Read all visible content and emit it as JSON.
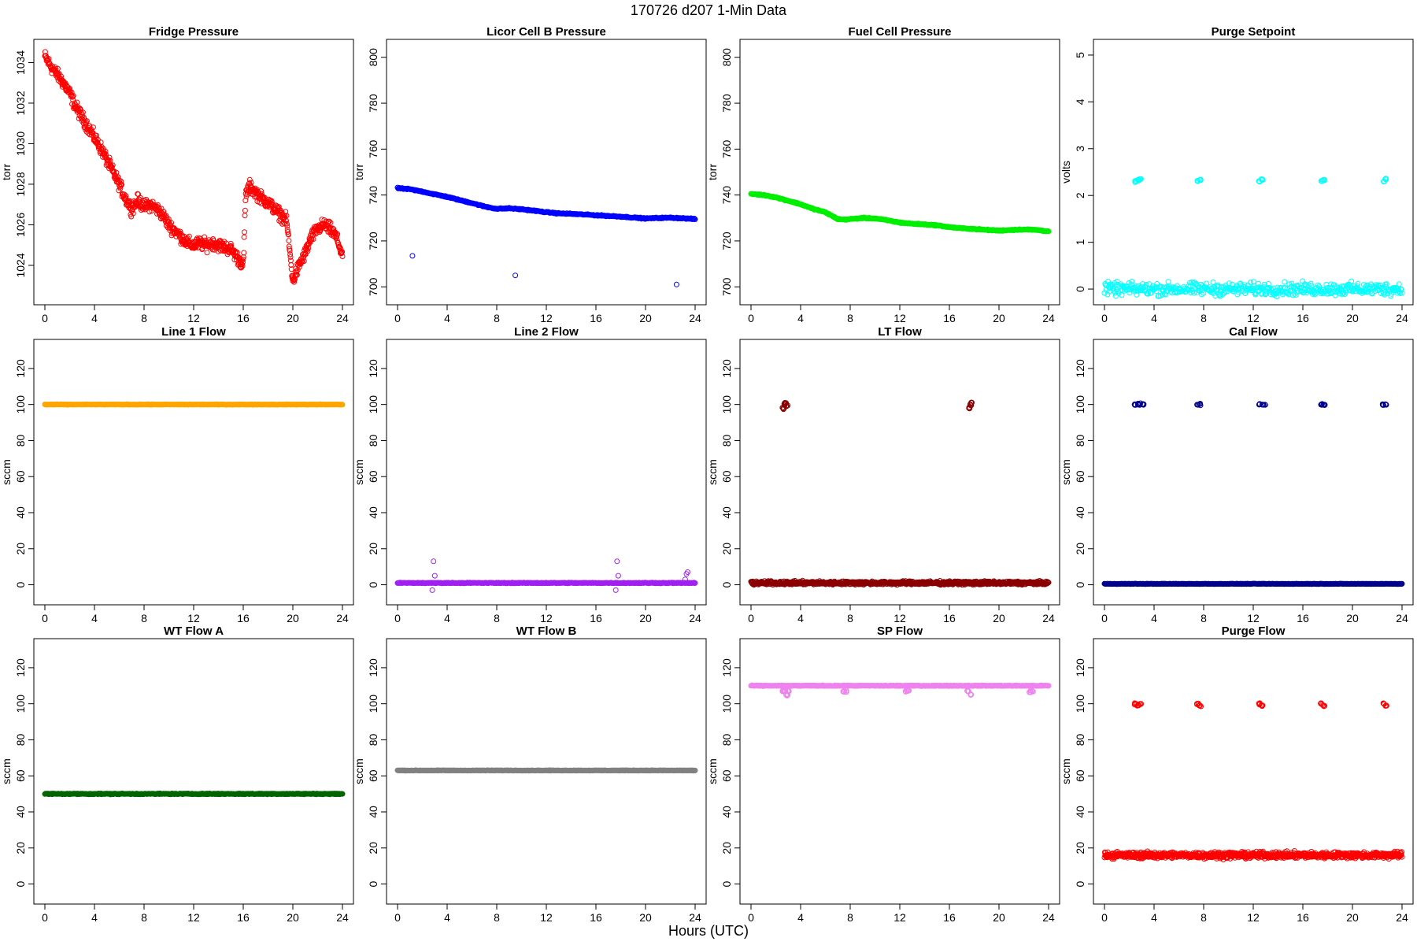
{
  "figure": {
    "title": "170726    d207    1-Min Data",
    "xlabel": "Hours (UTC)"
  },
  "chart_data": [
    {
      "type": "scatter",
      "title": "Fridge Pressure",
      "ylabel": "torr",
      "xlim": [
        0,
        24
      ],
      "ylim": [
        1022.6,
        1034.6
      ],
      "xticks": [
        0,
        4,
        8,
        12,
        16,
        20,
        24
      ],
      "yticks": [
        1024,
        1026,
        1028,
        1030,
        1032,
        1034
      ],
      "color": "#ff0000",
      "marker": "open-circle",
      "series": [
        {
          "x": [
            0,
            0.5,
            1,
            1.5,
            2,
            2.5,
            3,
            3.5,
            4,
            4.5,
            5,
            5.5,
            6,
            6.5,
            7,
            7.5,
            8,
            8.5,
            9,
            9.5,
            10,
            10.5,
            11,
            11.5,
            12,
            12.5,
            13,
            13.5,
            14,
            14.5,
            15,
            15.5,
            16,
            16.2,
            16.5,
            17,
            17.5,
            18,
            18.5,
            19,
            19.5,
            20,
            20.5,
            21,
            21.5,
            22,
            22.5,
            23,
            23.5,
            24
          ],
          "y": [
            1034.3,
            1033.8,
            1033.4,
            1033.0,
            1032.5,
            1031.8,
            1031.3,
            1030.8,
            1030.3,
            1029.8,
            1029.2,
            1028.6,
            1028.0,
            1027.3,
            1026.8,
            1027.2,
            1026.9,
            1027.0,
            1026.8,
            1026.5,
            1026.0,
            1025.7,
            1025.4,
            1025.1,
            1025.0,
            1025.1,
            1025.0,
            1025.1,
            1025.0,
            1024.9,
            1024.8,
            1024.4,
            1024.0,
            1027.5,
            1027.9,
            1027.6,
            1027.3,
            1027.1,
            1026.8,
            1026.5,
            1026.2,
            1023.2,
            1024.0,
            1024.6,
            1025.4,
            1025.8,
            1026.0,
            1025.8,
            1025.4,
            1024.5
          ]
        }
      ]
    },
    {
      "type": "scatter",
      "title": "Licor Cell B Pressure",
      "ylabel": "torr",
      "xlim": [
        0,
        24
      ],
      "ylim": [
        697,
        803
      ],
      "xticks": [
        0,
        4,
        8,
        12,
        16,
        20,
        24
      ],
      "yticks": [
        700,
        720,
        740,
        760,
        780,
        800
      ],
      "color": "#0000ff",
      "marker": "open-circle",
      "series": [
        {
          "x": [
            0,
            1,
            2,
            3,
            4,
            5,
            6,
            7,
            8,
            9,
            10,
            11,
            12,
            13,
            14,
            15,
            16,
            17,
            18,
            19,
            20,
            21,
            22,
            23,
            24
          ],
          "y": [
            743,
            742.5,
            741.5,
            740.3,
            739.2,
            737.8,
            736.5,
            735,
            734,
            734.2,
            733.8,
            733.2,
            732.5,
            732,
            731.8,
            731.5,
            731.2,
            730.9,
            730.6,
            730.2,
            729.8,
            730,
            730.1,
            729.9,
            729.5
          ]
        },
        {
          "name": "outliers",
          "x": [
            1.2,
            9.5,
            22.5
          ],
          "y": [
            713.5,
            705,
            701
          ]
        }
      ]
    },
    {
      "type": "scatter",
      "title": "Fuel Cell Pressure",
      "ylabel": "torr",
      "xlim": [
        0,
        24
      ],
      "ylim": [
        697,
        803
      ],
      "xticks": [
        0,
        4,
        8,
        12,
        16,
        20,
        24
      ],
      "yticks": [
        700,
        720,
        740,
        760,
        780,
        800
      ],
      "color": "#00ee00",
      "marker": "open-circle",
      "series": [
        {
          "x": [
            0,
            1,
            2,
            3,
            4,
            5,
            6,
            6.5,
            7,
            7.5,
            8,
            9,
            10,
            11,
            12,
            13,
            14,
            15,
            16,
            17,
            18,
            19,
            20,
            21,
            22,
            23,
            24
          ],
          "y": [
            740.5,
            740,
            739,
            737.5,
            736,
            734,
            732.5,
            731,
            729.5,
            729.3,
            729.5,
            730,
            729.8,
            729,
            728,
            727.5,
            727.2,
            726.8,
            726,
            725.5,
            725.2,
            724.8,
            724.5,
            724.8,
            725,
            724.8,
            724.2
          ]
        }
      ]
    },
    {
      "type": "scatter",
      "title": "Purge Setpoint",
      "ylabel": "volts",
      "xlim": [
        0,
        24
      ],
      "ylim": [
        -0.1,
        5.1
      ],
      "xticks": [
        0,
        4,
        8,
        12,
        16,
        20,
        24
      ],
      "yticks": [
        0,
        1,
        2,
        3,
        4,
        5
      ],
      "color": "#00ffff",
      "marker": "open-circle",
      "series": [
        {
          "name": "baseline",
          "x": [
            0,
            24
          ],
          "y": [
            0,
            0
          ]
        },
        {
          "name": "pulses",
          "x": [
            2.5,
            2.7,
            2.9,
            7.5,
            7.7,
            12.5,
            12.7,
            17.5,
            17.7,
            22.5,
            22.7
          ],
          "y": [
            2.3,
            2.33,
            2.35,
            2.31,
            2.33,
            2.3,
            2.34,
            2.31,
            2.33,
            2.3,
            2.35
          ]
        }
      ]
    },
    {
      "type": "scatter",
      "title": "Line 1 Flow",
      "ylabel": "sccm",
      "xlim": [
        0,
        24
      ],
      "ylim": [
        -5,
        130
      ],
      "xticks": [
        0,
        4,
        8,
        12,
        16,
        20,
        24
      ],
      "yticks": [
        0,
        20,
        40,
        60,
        80,
        100,
        120
      ],
      "color": "#ffa500",
      "marker": "open-circle",
      "series": [
        {
          "x": [
            0,
            24
          ],
          "y": [
            100,
            100
          ]
        }
      ]
    },
    {
      "type": "scatter",
      "title": "Line 2 Flow",
      "ylabel": "sccm",
      "xlim": [
        0,
        24
      ],
      "ylim": [
        -5,
        130
      ],
      "xticks": [
        0,
        4,
        8,
        12,
        16,
        20,
        24
      ],
      "yticks": [
        0,
        20,
        40,
        60,
        80,
        100,
        120
      ],
      "color": "#a020f0",
      "marker": "open-circle",
      "series": [
        {
          "name": "baseline",
          "x": [
            0,
            24
          ],
          "y": [
            1,
            1
          ]
        },
        {
          "name": "spikes",
          "x": [
            2.8,
            2.9,
            3.0,
            17.6,
            17.7,
            17.8,
            23.2,
            23.3,
            23.4
          ],
          "y": [
            -3,
            13,
            5,
            -3,
            13,
            5,
            3,
            6,
            7
          ]
        }
      ]
    },
    {
      "type": "scatter",
      "title": "LT Flow",
      "ylabel": "sccm",
      "xlim": [
        0,
        24
      ],
      "ylim": [
        -5,
        130
      ],
      "xticks": [
        0,
        4,
        8,
        12,
        16,
        20,
        24
      ],
      "yticks": [
        0,
        20,
        40,
        60,
        80,
        100,
        120
      ],
      "color": "#8b0000",
      "marker": "open-circle",
      "series": [
        {
          "name": "baseline",
          "x": [
            0,
            24
          ],
          "y": [
            1,
            1
          ]
        },
        {
          "name": "pulses",
          "x": [
            2.6,
            2.7,
            2.8,
            2.9,
            17.6,
            17.7,
            17.8
          ],
          "y": [
            98,
            100,
            101,
            99,
            98,
            100,
            101
          ]
        }
      ]
    },
    {
      "type": "scatter",
      "title": "Cal Flow",
      "ylabel": "sccm",
      "xlim": [
        0,
        24
      ],
      "ylim": [
        -5,
        130
      ],
      "xticks": [
        0,
        4,
        8,
        12,
        16,
        20,
        24
      ],
      "yticks": [
        0,
        20,
        40,
        60,
        80,
        100,
        120
      ],
      "color": "#00008b",
      "marker": "open-circle",
      "series": [
        {
          "name": "baseline",
          "x": [
            0,
            24
          ],
          "y": [
            0.5,
            0.5
          ]
        },
        {
          "name": "pulses",
          "x": [
            2.5,
            2.7,
            2.9,
            3.1,
            7.5,
            7.7,
            12.5,
            12.7,
            12.9,
            17.5,
            17.7,
            22.5,
            22.7
          ],
          "y": [
            100,
            100,
            100,
            100,
            100,
            100,
            100,
            100,
            100,
            100,
            100,
            100,
            100
          ]
        }
      ]
    },
    {
      "type": "scatter",
      "title": "WT Flow A",
      "ylabel": "sccm",
      "xlim": [
        0,
        24
      ],
      "ylim": [
        -5,
        130
      ],
      "xticks": [
        0,
        4,
        8,
        12,
        16,
        20,
        24
      ],
      "yticks": [
        0,
        20,
        40,
        60,
        80,
        100,
        120
      ],
      "color": "#006400",
      "marker": "open-circle",
      "series": [
        {
          "x": [
            0,
            24
          ],
          "y": [
            50,
            50
          ]
        }
      ]
    },
    {
      "type": "scatter",
      "title": "WT Flow B",
      "ylabel": "sccm",
      "xlim": [
        0,
        24
      ],
      "ylim": [
        -5,
        130
      ],
      "xticks": [
        0,
        4,
        8,
        12,
        16,
        20,
        24
      ],
      "yticks": [
        0,
        20,
        40,
        60,
        80,
        100,
        120
      ],
      "color": "#808080",
      "marker": "open-circle",
      "series": [
        {
          "x": [
            0,
            24
          ],
          "y": [
            63,
            63
          ]
        }
      ]
    },
    {
      "type": "scatter",
      "title": "SP Flow",
      "ylabel": "sccm",
      "xlim": [
        0,
        24
      ],
      "ylim": [
        -5,
        130
      ],
      "xticks": [
        0,
        4,
        8,
        12,
        16,
        20,
        24
      ],
      "yticks": [
        0,
        20,
        40,
        60,
        80,
        100,
        120
      ],
      "color": "#ee82ee",
      "marker": "open-circle",
      "series": [
        {
          "name": "baseline",
          "x": [
            0,
            24
          ],
          "y": [
            110,
            110
          ]
        },
        {
          "name": "dips",
          "x": [
            2.5,
            2.7,
            2.9,
            3.0,
            7.5,
            7.7,
            12.5,
            12.7,
            17.5,
            17.7,
            22.5,
            22.7
          ],
          "y": [
            107,
            107,
            105,
            107,
            107,
            107,
            107,
            107,
            107,
            105,
            107,
            107
          ]
        }
      ]
    },
    {
      "type": "scatter",
      "title": "Purge Flow",
      "ylabel": "sccm",
      "xlim": [
        0,
        24
      ],
      "ylim": [
        -5,
        130
      ],
      "xticks": [
        0,
        4,
        8,
        12,
        16,
        20,
        24
      ],
      "yticks": [
        0,
        20,
        40,
        60,
        80,
        100,
        120
      ],
      "color": "#ff0000",
      "marker": "open-circle",
      "series": [
        {
          "name": "baseline",
          "x": [
            0,
            24
          ],
          "y": [
            16,
            16
          ]
        },
        {
          "name": "pulses",
          "x": [
            2.5,
            2.7,
            2.9,
            7.5,
            7.7,
            12.5,
            12.7,
            17.5,
            17.7,
            22.5,
            22.7
          ],
          "y": [
            100,
            99,
            100,
            100,
            99,
            100,
            99,
            100,
            99,
            100,
            99
          ]
        }
      ]
    }
  ]
}
